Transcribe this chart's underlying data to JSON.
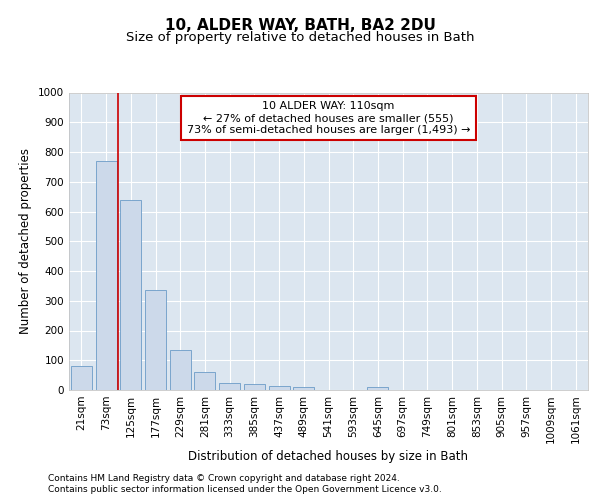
{
  "title": "10, ALDER WAY, BATH, BA2 2DU",
  "subtitle": "Size of property relative to detached houses in Bath",
  "xlabel": "Distribution of detached houses by size in Bath",
  "ylabel": "Number of detached properties",
  "categories": [
    "21sqm",
    "73sqm",
    "125sqm",
    "177sqm",
    "229sqm",
    "281sqm",
    "333sqm",
    "385sqm",
    "437sqm",
    "489sqm",
    "541sqm",
    "593sqm",
    "645sqm",
    "697sqm",
    "749sqm",
    "801sqm",
    "853sqm",
    "905sqm",
    "957sqm",
    "1009sqm",
    "1061sqm"
  ],
  "values": [
    82,
    770,
    640,
    335,
    135,
    60,
    25,
    20,
    15,
    10,
    0,
    0,
    10,
    0,
    0,
    0,
    0,
    0,
    0,
    0,
    0
  ],
  "bar_color": "#ccd9ea",
  "bar_edge_color": "#6b9cc8",
  "vline_x_idx": 2,
  "vline_color": "#cc0000",
  "annotation_text": "10 ALDER WAY: 110sqm\n← 27% of detached houses are smaller (555)\n73% of semi-detached houses are larger (1,493) →",
  "annotation_box_facecolor": "#ffffff",
  "annotation_box_edgecolor": "#cc0000",
  "ylim": [
    0,
    1000
  ],
  "yticks": [
    0,
    100,
    200,
    300,
    400,
    500,
    600,
    700,
    800,
    900,
    1000
  ],
  "plot_bg_color": "#dce6f0",
  "grid_color": "#ffffff",
  "footer1": "Contains HM Land Registry data © Crown copyright and database right 2024.",
  "footer2": "Contains public sector information licensed under the Open Government Licence v3.0.",
  "title_fontsize": 11,
  "subtitle_fontsize": 9.5,
  "axis_label_fontsize": 8.5,
  "tick_fontsize": 7.5,
  "annotation_fontsize": 8,
  "footer_fontsize": 6.5
}
